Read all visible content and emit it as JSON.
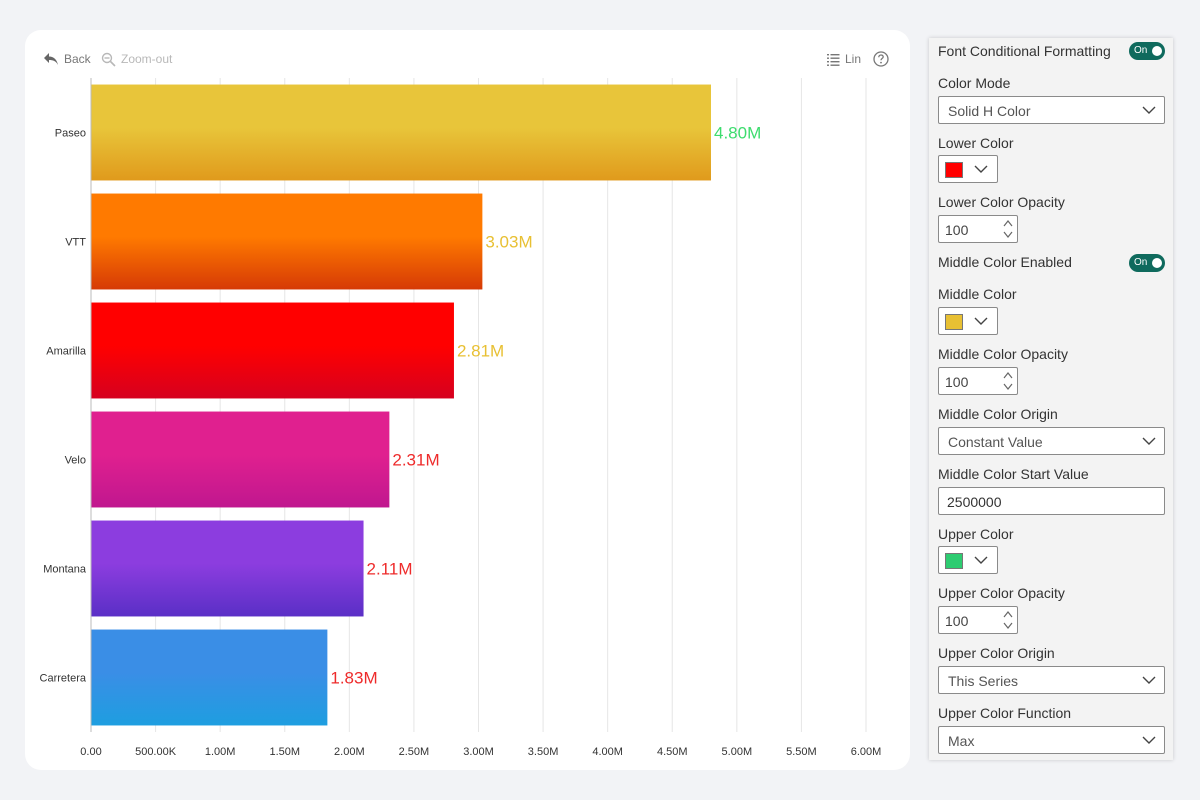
{
  "toolbar": {
    "back_label": "Back",
    "zoom_out_label": "Zoom-out",
    "scale_label": "Lin"
  },
  "chart_data": {
    "type": "bar",
    "orientation": "horizontal",
    "categories": [
      "Paseo",
      "VTT",
      "Amarilla",
      "Velo",
      "Montana",
      "Carretera"
    ],
    "values": [
      4800000,
      3030000,
      2810000,
      2310000,
      2110000,
      1830000
    ],
    "data_labels": [
      "4.80M",
      "3.03M",
      "2.81M",
      "2.31M",
      "2.11M",
      "1.83M"
    ],
    "label_colors": [
      "#3ddc6e",
      "#e8c033",
      "#e8c033",
      "#ee2b2b",
      "#ee2b2b",
      "#ee2b2b"
    ],
    "bar_colors": [
      [
        "#e8c53a",
        "#e09a1c"
      ],
      [
        "#ff7a00",
        "#d63a06"
      ],
      [
        "#ff0000",
        "#d6001f"
      ],
      [
        "#e0208f",
        "#c0178f"
      ],
      [
        "#8c3ddf",
        "#5a2fc6"
      ],
      [
        "#3a8ee6",
        "#1e9ee0"
      ]
    ],
    "xlim": [
      0,
      6000000
    ],
    "x_ticks": [
      0,
      500000,
      1000000,
      1500000,
      2000000,
      2500000,
      3000000,
      3500000,
      4000000,
      4500000,
      5000000,
      5500000,
      6000000
    ],
    "x_tick_labels": [
      "0.00",
      "500.00K",
      "1.00M",
      "1.50M",
      "2.00M",
      "2.50M",
      "3.00M",
      "3.50M",
      "4.00M",
      "4.50M",
      "5.00M",
      "5.50M",
      "6.00M"
    ],
    "grid": true,
    "title": "",
    "xlabel": "",
    "ylabel": ""
  },
  "panel": {
    "font_cf_label": "Font Conditional Formatting",
    "font_cf_toggle": "On",
    "color_mode_label": "Color Mode",
    "color_mode_value": "Solid H Color",
    "lower_color_label": "Lower Color",
    "lower_color": "#ff0000",
    "lower_opacity_label": "Lower Color Opacity",
    "lower_opacity_value": "100",
    "middle_enabled_label": "Middle Color Enabled",
    "middle_enabled_toggle": "On",
    "middle_color_label": "Middle Color",
    "middle_color": "#e8c033",
    "middle_opacity_label": "Middle Color Opacity",
    "middle_opacity_value": "100",
    "middle_origin_label": "Middle Color Origin",
    "middle_origin_value": "Constant Value",
    "middle_start_label": "Middle Color Start Value",
    "middle_start_value": "2500000",
    "upper_color_label": "Upper Color",
    "upper_color": "#2ecc71",
    "upper_opacity_label": "Upper Color Opacity",
    "upper_opacity_value": "100",
    "upper_origin_label": "Upper Color Origin",
    "upper_origin_value": "This Series",
    "upper_function_label": "Upper Color Function",
    "upper_function_value": "Max"
  }
}
